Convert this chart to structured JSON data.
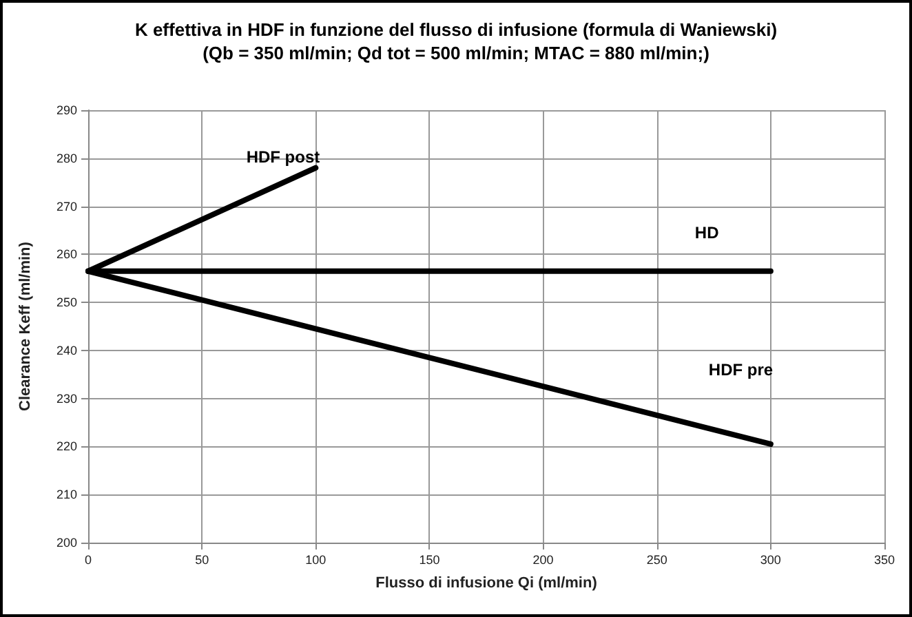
{
  "chart_data": {
    "type": "line",
    "title": "K effettiva in HDF in funzione del flusso di infusione (formula di Waniewski)",
    "subtitle": "(Qb = 350 ml/min; Qd tot = 500 ml/min; MTAC = 880 ml/min;)",
    "xlabel": "Flusso di infusione Qi (ml/min)",
    "ylabel": "Clearance Keff (ml/min)",
    "series": [
      {
        "name": "HDF post",
        "color": "#000000",
        "x": [
          0,
          100
        ],
        "values": [
          256.5,
          278
        ]
      },
      {
        "name": "HD",
        "color": "#000000",
        "x": [
          0,
          300
        ],
        "values": [
          256.5,
          256.5
        ]
      },
      {
        "name": "HDF pre",
        "color": "#000000",
        "x": [
          0,
          300
        ],
        "values": [
          256.5,
          220.5
        ]
      }
    ],
    "xlim": [
      0,
      350
    ],
    "xticks": [
      0,
      50,
      100,
      150,
      200,
      250,
      300,
      350
    ],
    "ylim": [
      200,
      290
    ],
    "yticks": [
      200,
      210,
      220,
      230,
      240,
      250,
      260,
      270,
      280,
      290
    ],
    "grid": true,
    "legend": false,
    "marker": "none",
    "line_style": "solid"
  }
}
